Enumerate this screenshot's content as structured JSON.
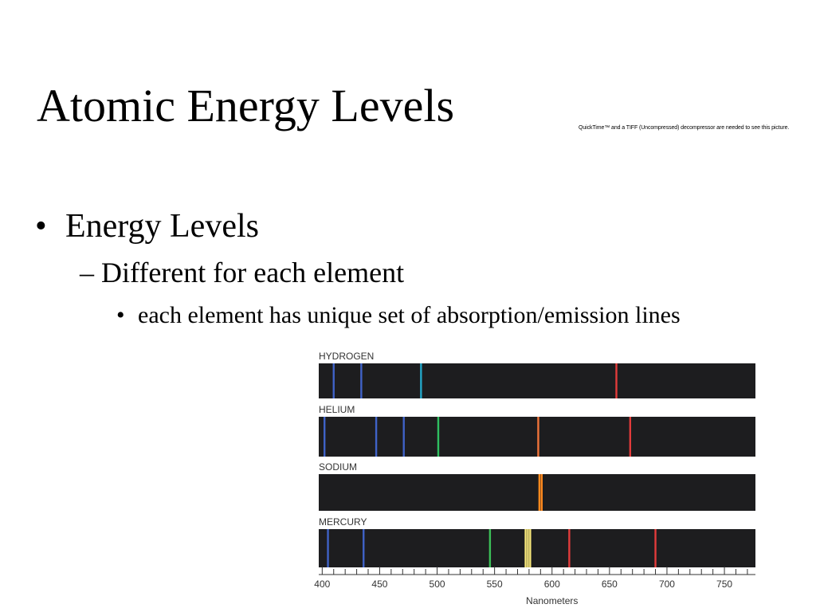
{
  "slide": {
    "title": "Atomic Energy Levels",
    "quicktime_notice": "QuickTime™ and a TIFF (Uncompressed) decompressor are needed to see this picture.",
    "bullets": [
      {
        "text": "Energy Levels",
        "children": [
          {
            "text": "Different for each element",
            "children": [
              {
                "text": "each element has unique set of absorption/emission lines"
              }
            ]
          }
        ]
      }
    ]
  },
  "chart_data": {
    "type": "emission-spectra",
    "xlabel": "Nanometers",
    "xlim": [
      397,
      777
    ],
    "xticks": [
      400,
      450,
      500,
      550,
      600,
      650,
      700,
      750
    ],
    "tick_labels": [
      "400",
      "450",
      "500",
      "550",
      "600",
      "650",
      "700",
      "750"
    ],
    "series": [
      {
        "name": "HYDROGEN",
        "lines": [
          {
            "nm": 410,
            "color": "#3f62c7"
          },
          {
            "nm": 434,
            "color": "#3f62c7"
          },
          {
            "nm": 486,
            "color": "#23a7c8"
          },
          {
            "nm": 656,
            "color": "#e23b3b"
          }
        ]
      },
      {
        "name": "HELIUM",
        "lines": [
          {
            "nm": 402,
            "color": "#3f62c7"
          },
          {
            "nm": 447,
            "color": "#3f62c7"
          },
          {
            "nm": 471,
            "color": "#3f62c7"
          },
          {
            "nm": 501,
            "color": "#2fbf61"
          },
          {
            "nm": 588,
            "color": "#f0743a"
          },
          {
            "nm": 668,
            "color": "#e23b3b"
          }
        ]
      },
      {
        "name": "SODIUM",
        "lines": [
          {
            "nm": 589.0,
            "color": "#ff8a1e"
          },
          {
            "nm": 591.0,
            "color": "#ff8a1e"
          }
        ]
      },
      {
        "name": "MERCURY",
        "lines": [
          {
            "nm": 405,
            "color": "#3f62c7"
          },
          {
            "nm": 436,
            "color": "#3f62c7"
          },
          {
            "nm": 546,
            "color": "#3cbf58"
          },
          {
            "nm": 577,
            "color": "#f7e77a"
          },
          {
            "nm": 579,
            "color": "#f7e77a"
          },
          {
            "nm": 581,
            "color": "#f7e77a"
          },
          {
            "nm": 615,
            "color": "#e23b3b"
          },
          {
            "nm": 690,
            "color": "#e23b3b"
          }
        ]
      }
    ]
  }
}
